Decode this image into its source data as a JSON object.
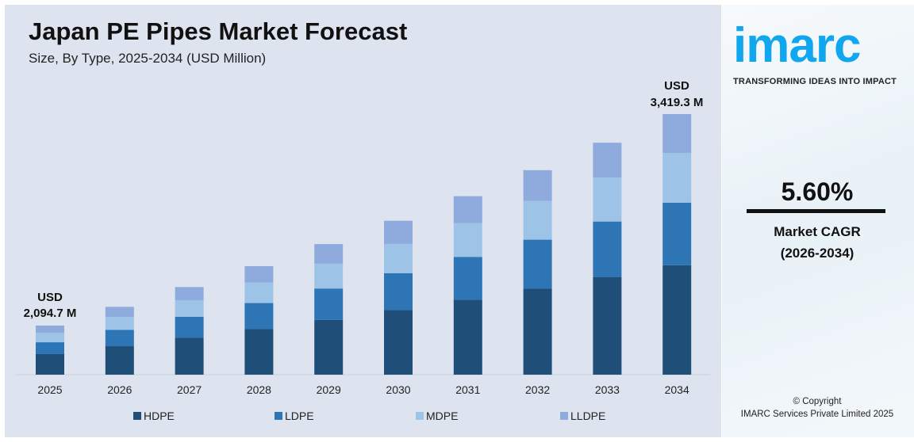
{
  "title": "Japan PE Pipes Market Forecast",
  "subtitle": "Size, By Type, 2025-2034 (USD Million)",
  "annotations": {
    "start_line1": "USD",
    "start_line2": "2,094.7 M",
    "end_line1": "USD",
    "end_line2": "3,419.3 M"
  },
  "side": {
    "logo": "imarc",
    "tagline": "TRANSFORMING IDEAS INTO IMPACT",
    "cagr_value": "5.60%",
    "cagr_label": "Market CAGR",
    "cagr_period": "(2026-2034)",
    "copyright": "© Copyright",
    "company": "IMARC Services Private Limited 2025"
  },
  "chart_data": {
    "type": "bar",
    "stacked": true,
    "title": "Japan PE Pipes Market Forecast",
    "subtitle": "Size, By Type, 2025-2034 (USD Million)",
    "xlabel": "",
    "ylabel": "",
    "grid": false,
    "legend_position": "bottom",
    "categories": [
      "2025",
      "2026",
      "2027",
      "2028",
      "2029",
      "2030",
      "2031",
      "2032",
      "2033",
      "2034"
    ],
    "totals": [
      2094.7,
      2212,
      2336,
      2467,
      2605,
      2751,
      2905,
      3068,
      3240,
      3419.3
    ],
    "series": [
      {
        "name": "HDPE",
        "color": "#1f4e79",
        "values": [
          880,
          929,
          981,
          1036,
          1094,
          1155,
          1220,
          1289,
          1361,
          1436
        ]
      },
      {
        "name": "LDPE",
        "color": "#2e75b6",
        "values": [
          503,
          531,
          561,
          592,
          625,
          660,
          697,
          736,
          778,
          821
        ]
      },
      {
        "name": "MDPE",
        "color": "#9dc3e6",
        "values": [
          398,
          420,
          444,
          469,
          495,
          523,
          552,
          583,
          616,
          650
        ]
      },
      {
        "name": "LLDPE",
        "color": "#8faadc",
        "values": [
          314,
          332,
          350,
          370,
          391,
          413,
          436,
          460,
          485,
          512
        ]
      }
    ]
  }
}
